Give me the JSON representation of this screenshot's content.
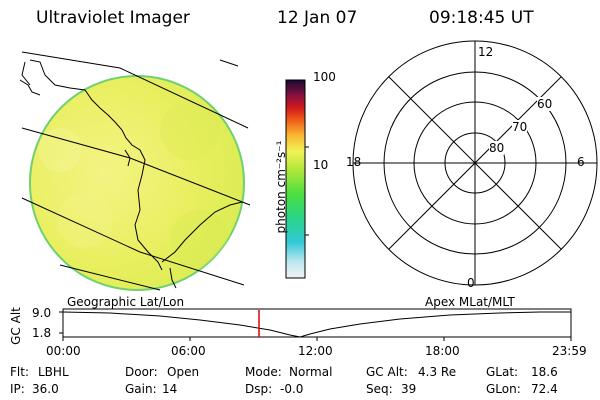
{
  "header": {
    "title": "Ultraviolet Imager",
    "date": "12 Jan 07",
    "time": "09:18:45 UT"
  },
  "colorbar": {
    "unit_label": "photon cm⁻²s⁻¹",
    "tick_100": "100",
    "tick_10": "10"
  },
  "polar_plot": {
    "labels": {
      "top": "12",
      "bottom": "0",
      "left": "18",
      "right": "6"
    },
    "ring_labels": [
      "60",
      "70",
      "80"
    ]
  },
  "map_labels": {
    "left": "Geographic Lat/Lon",
    "right": "Apex MLat/MLT"
  },
  "altitude_panel": {
    "ylabel": "GC Alt",
    "y_ticks": [
      "9.0",
      "1.8"
    ],
    "x_ticks": [
      "00:00",
      "06:00",
      "12:00",
      "18:00",
      "23:59"
    ],
    "marker_time": "09:18:45",
    "marker_color": "#e00000"
  },
  "footer": {
    "flt_label": "Flt:",
    "flt_value": "LBHL",
    "ip_label": "IP:",
    "ip_value": "36.0",
    "door_label": "Door:",
    "door_value": "Open",
    "gain_label": "Gain:",
    "gain_value": "14",
    "mode_label": "Mode:",
    "mode_value": "Normal",
    "dsp_label": "Dsp:",
    "dsp_value": "-0.0",
    "gcalt_label": "GC Alt:",
    "gcalt_value": "4.3 Re",
    "seq_label": "Seq:",
    "seq_value": "39",
    "glat_label": "GLat:",
    "glat_value": "18.6",
    "glon_label": "GLon:",
    "glon_value": "72.4"
  },
  "colors": {
    "disk_fill": "#e6ee5a",
    "disk_edge": "#6fd06f",
    "grid_line": "#000000"
  }
}
